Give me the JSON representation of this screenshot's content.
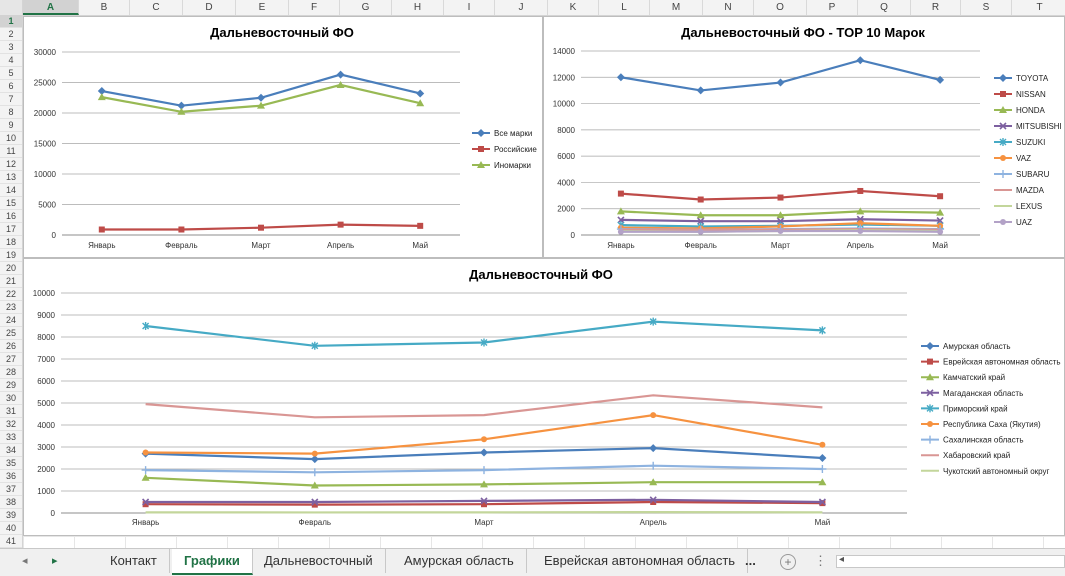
{
  "sheet": {
    "columns": [
      "A",
      "B",
      "C",
      "D",
      "E",
      "F",
      "G",
      "H",
      "I",
      "J",
      "K",
      "L",
      "M",
      "N",
      "O",
      "P",
      "Q",
      "R",
      "S",
      "T"
    ],
    "selected_column": "A",
    "selected_row": "1",
    "rows": [
      "1",
      "2",
      "3",
      "4",
      "5",
      "6",
      "7",
      "8",
      "9",
      "10",
      "11",
      "12",
      "13",
      "14",
      "15",
      "16",
      "17",
      "18",
      "19",
      "20",
      "21",
      "22",
      "23",
      "24",
      "25",
      "26",
      "27",
      "28",
      "29",
      "30",
      "31",
      "32",
      "33",
      "34",
      "35",
      "36",
      "37",
      "38",
      "39",
      "40",
      "41"
    ]
  },
  "tabs": {
    "prev_icon": "triangle-left-icon",
    "next_icon": "triangle-right-icon",
    "items": [
      "Контакт",
      "Графики",
      "Дальневосточный",
      "Амурская область",
      "Еврейская автономная область"
    ],
    "active": "Графики",
    "more": "...",
    "add_icon": "plus-circle-icon",
    "options_icon": "vertical-dots-icon"
  },
  "chart_data": [
    {
      "type": "line",
      "title": "Дальневосточный ФО",
      "categories": [
        "Январь",
        "Февраль",
        "Март",
        "Апрель",
        "Май"
      ],
      "ylim": [
        0,
        30000
      ],
      "yticks": [
        0,
        5000,
        10000,
        15000,
        20000,
        25000,
        30000
      ],
      "grid": true,
      "legend": "right",
      "series": [
        {
          "name": "Все марки",
          "color": "#4a7ebb",
          "marker": "diamond",
          "values": [
            23600,
            21200,
            22500,
            26300,
            23200
          ]
        },
        {
          "name": "Российские",
          "color": "#be4b48",
          "marker": "square",
          "values": [
            900,
            900,
            1200,
            1700,
            1500
          ]
        },
        {
          "name": "Иномарки",
          "color": "#98b954",
          "marker": "triangle",
          "values": [
            22600,
            20200,
            21200,
            24600,
            21600
          ]
        }
      ]
    },
    {
      "type": "line",
      "title": "Дальневосточный ФО - TOP 10 Марок",
      "categories": [
        "Январь",
        "Февраль",
        "Март",
        "Апрель",
        "Май"
      ],
      "ylim": [
        0,
        14000
      ],
      "yticks": [
        0,
        2000,
        4000,
        6000,
        8000,
        10000,
        12000,
        14000
      ],
      "grid": true,
      "legend": "right",
      "series": [
        {
          "name": "TOYOTA",
          "color": "#4a7ebb",
          "marker": "diamond",
          "values": [
            12000,
            11000,
            11600,
            13300,
            11800
          ]
        },
        {
          "name": "NISSAN",
          "color": "#be4b48",
          "marker": "square",
          "values": [
            3150,
            2700,
            2850,
            3350,
            2950
          ]
        },
        {
          "name": "HONDA",
          "color": "#98b954",
          "marker": "triangle",
          "values": [
            1800,
            1500,
            1500,
            1800,
            1700
          ]
        },
        {
          "name": "MITSUBISHI",
          "color": "#7d60a0",
          "marker": "x",
          "values": [
            1150,
            1050,
            1050,
            1200,
            1100
          ]
        },
        {
          "name": "SUZUKI",
          "color": "#46aac5",
          "marker": "star",
          "values": [
            750,
            650,
            700,
            800,
            700
          ]
        },
        {
          "name": "VAZ",
          "color": "#f69240",
          "marker": "circle",
          "values": [
            550,
            500,
            650,
            900,
            700
          ]
        },
        {
          "name": "SUBARU",
          "color": "#8eb3e0",
          "marker": "plus",
          "values": [
            450,
            400,
            450,
            500,
            450
          ]
        },
        {
          "name": "MAZDA",
          "color": "#d99694",
          "marker": "none",
          "values": [
            400,
            400,
            400,
            450,
            400
          ]
        },
        {
          "name": "LEXUS",
          "color": "#c3d69b",
          "marker": "none",
          "values": [
            300,
            250,
            300,
            350,
            300
          ]
        },
        {
          "name": "UAZ",
          "color": "#b3a2c7",
          "marker": "circle",
          "values": [
            250,
            250,
            300,
            300,
            250
          ]
        }
      ]
    },
    {
      "type": "line",
      "title": "Дальневосточный ФО",
      "categories": [
        "Январь",
        "Февраль",
        "Март",
        "Апрель",
        "Май"
      ],
      "ylim": [
        0,
        10000
      ],
      "yticks": [
        0,
        1000,
        2000,
        3000,
        4000,
        5000,
        6000,
        7000,
        8000,
        9000,
        10000
      ],
      "grid": true,
      "legend": "right",
      "series": [
        {
          "name": "Амурская область",
          "color": "#4a7ebb",
          "marker": "diamond",
          "values": [
            2700,
            2450,
            2750,
            2950,
            2500
          ]
        },
        {
          "name": "Еврейская автономная область",
          "color": "#be4b48",
          "marker": "square",
          "values": [
            400,
            380,
            400,
            500,
            450
          ]
        },
        {
          "name": "Камчатский край",
          "color": "#98b954",
          "marker": "triangle",
          "values": [
            1600,
            1250,
            1300,
            1400,
            1400
          ]
        },
        {
          "name": "Магаданская область",
          "color": "#7d60a0",
          "marker": "x",
          "values": [
            500,
            500,
            550,
            600,
            500
          ]
        },
        {
          "name": "Приморский край",
          "color": "#46aac5",
          "marker": "star",
          "values": [
            8500,
            7600,
            7750,
            8700,
            8300
          ]
        },
        {
          "name": "Республика Саха (Якутия)",
          "color": "#f69240",
          "marker": "circle",
          "values": [
            2750,
            2700,
            3350,
            4450,
            3100
          ]
        },
        {
          "name": "Сахалинская область",
          "color": "#8eb3e0",
          "marker": "plus",
          "values": [
            1950,
            1850,
            1950,
            2150,
            2000
          ]
        },
        {
          "name": "Хабаровский край",
          "color": "#d99694",
          "marker": "none",
          "values": [
            4950,
            4350,
            4450,
            5350,
            4800
          ]
        },
        {
          "name": "Чукотский автономный округ",
          "color": "#c3d69b",
          "marker": "none",
          "values": [
            30,
            25,
            30,
            40,
            30
          ]
        }
      ]
    }
  ]
}
